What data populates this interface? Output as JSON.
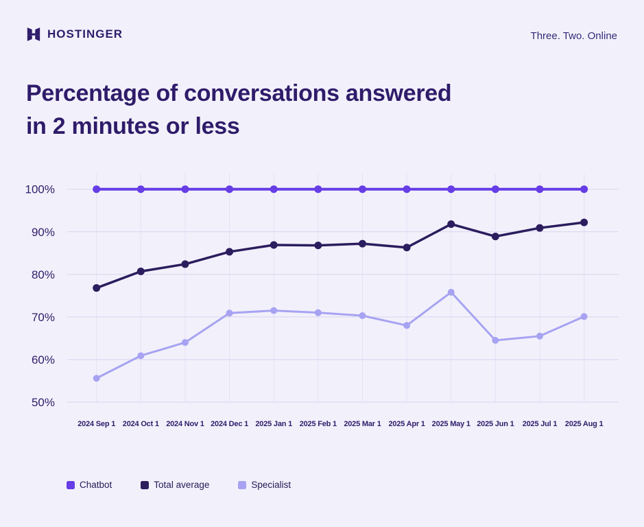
{
  "brand": {
    "name": "HOSTINGER",
    "tagline": "Three. Two. Online"
  },
  "title": {
    "line1": "Percentage of conversations answered",
    "line2": "in 2 minutes or less"
  },
  "colors": {
    "background": "#F2F1FB",
    "title_text": "#2F1C6A",
    "tagline_text": "#332B78",
    "axis_label": "#2F1C6A",
    "grid_horizontal": "#D7D4EF",
    "grid_vertical": "#E4E1F6",
    "chatbot": "#673DE6",
    "total_average": "#2B1D5E",
    "specialist": "#A7A3F2",
    "legend_text": "#241856",
    "logo": "#2F1C6A"
  },
  "chart_data": {
    "type": "line",
    "title": "Percentage of conversations answered in 2 minutes or less",
    "categories": [
      "2024 Sep 1",
      "2024 Oct 1",
      "2024 Nov 1",
      "2024 Dec 1",
      "2025 Jan 1",
      "2025 Feb 1",
      "2025 Mar 1",
      "2025 Apr 1",
      "2025 May 1",
      "2025 Jun 1",
      "2025 Jul 1",
      "2025 Aug 1"
    ],
    "series": [
      {
        "name": "Chatbot",
        "color_key": "chatbot",
        "values": [
          100,
          100,
          100,
          100,
          100,
          100,
          100,
          100,
          100,
          100,
          100,
          100
        ]
      },
      {
        "name": "Total average",
        "color_key": "total_average",
        "values": [
          76.8,
          80.7,
          82.4,
          85.3,
          86.9,
          86.8,
          87.2,
          86.3,
          91.8,
          88.9,
          90.9,
          92.2
        ]
      },
      {
        "name": "Specialist",
        "color_key": "specialist",
        "values": [
          55.6,
          60.9,
          64.0,
          70.9,
          71.5,
          71.0,
          70.3,
          68.0,
          75.8,
          64.5,
          65.5,
          70.1
        ]
      }
    ],
    "y_ticks": [
      {
        "value": 100,
        "label": "100%"
      },
      {
        "value": 90,
        "label": "90%"
      },
      {
        "value": 80,
        "label": "80%"
      },
      {
        "value": 70,
        "label": "70%"
      },
      {
        "value": 60,
        "label": "60%"
      },
      {
        "value": 50,
        "label": "50%"
      }
    ],
    "ylim": [
      50,
      100
    ],
    "grid": "both",
    "legend_position": "bottom-left"
  }
}
